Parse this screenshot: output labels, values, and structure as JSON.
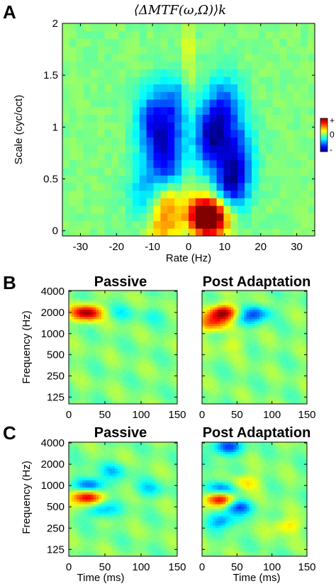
{
  "panel_letters": [
    "A",
    "B",
    "C"
  ],
  "colors": {
    "colormap": "jet",
    "axis": "#000000",
    "background": "#ffffff"
  },
  "chart_data": [
    {
      "panel": "A",
      "type": "heatmap",
      "title": "⟨ΔMTF(ω,Ω)⟩k",
      "xlabel": "Rate (Hz)",
      "ylabel": "Scale (cyc/oct)",
      "xlim": [
        -35,
        35
      ],
      "ylim": [
        -0.05,
        2
      ],
      "xticks": [
        -30,
        -20,
        -10,
        0,
        10,
        20,
        30
      ],
      "yticks": [
        0,
        0.5,
        1,
        1.5,
        2
      ],
      "ytick_labels": [
        "0",
        "0.5",
        "1",
        "1.5",
        "2"
      ],
      "grid": false,
      "colorbar": {
        "labels": [
          "+",
          "0",
          "-"
        ],
        "range": [
          -1,
          1
        ]
      },
      "value_range": [
        -1,
        1
      ],
      "features": [
        {
          "x": 4,
          "y": 0.18,
          "value": 1.0
        },
        {
          "x": 6,
          "y": 0.08,
          "value": 0.8
        },
        {
          "x": 10,
          "y": 0.18,
          "value": 0.45
        },
        {
          "x": -6,
          "y": 0.3,
          "value": 0.5
        },
        {
          "x": -7,
          "y": 0.05,
          "value": 0.5
        },
        {
          "x": 12,
          "y": 0.45,
          "value": -0.95
        },
        {
          "x": 6,
          "y": 0.9,
          "value": -0.9
        },
        {
          "x": 10,
          "y": 1.2,
          "value": -0.6
        },
        {
          "x": -6,
          "y": 0.7,
          "value": -0.75
        },
        {
          "x": -10,
          "y": 1.05,
          "value": -0.7
        },
        {
          "x": -4,
          "y": 1.2,
          "value": -0.55
        },
        {
          "x": -12,
          "y": 0.4,
          "value": -0.4
        },
        {
          "x": 14,
          "y": 0.8,
          "value": -0.5
        }
      ]
    },
    {
      "panel": "B-left",
      "type": "heatmap",
      "title": "Passive",
      "xlabel": "",
      "ylabel": "Frequency (Hz)",
      "xlim": [
        0,
        150
      ],
      "xticks": [
        0,
        50,
        100,
        150
      ],
      "yticks": [
        125,
        250,
        500,
        1000,
        2000,
        4000
      ],
      "ytick_labels": [
        "125",
        "250",
        "500",
        "1000",
        "2000",
        "4000"
      ],
      "features": [
        {
          "t": 25,
          "f": 2000,
          "value": 1.0
        },
        {
          "t": 70,
          "f": 2000,
          "value": -0.2
        },
        {
          "t": 120,
          "f": 1800,
          "value": -0.15
        }
      ]
    },
    {
      "panel": "B-right",
      "type": "heatmap",
      "title": "Post Adaptation",
      "xlabel": "",
      "ylabel": "",
      "xlim": [
        0,
        150
      ],
      "xticks": [
        0,
        50,
        100,
        150
      ],
      "yticks": [
        125,
        250,
        500,
        1000,
        2000,
        4000
      ],
      "features": [
        {
          "t": 30,
          "f": 2000,
          "value": 1.0
        },
        {
          "t": 15,
          "f": 1400,
          "value": 0.6
        },
        {
          "t": 80,
          "f": 2000,
          "value": -0.5
        },
        {
          "t": 60,
          "f": 1600,
          "value": -0.3
        },
        {
          "t": 40,
          "f": 700,
          "value": 0.2
        }
      ]
    },
    {
      "panel": "C-left",
      "type": "heatmap",
      "title": "Passive",
      "xlabel": "Time (ms)",
      "ylabel": "Frequency (Hz)",
      "xlim": [
        0,
        150
      ],
      "xticks": [
        0,
        50,
        100,
        150
      ],
      "yticks": [
        125,
        250,
        500,
        1000,
        2000,
        4000
      ],
      "ytick_labels": [
        "125",
        "250",
        "500",
        "1000",
        "2000",
        "4000"
      ],
      "features": [
        {
          "t": 25,
          "f": 700,
          "value": 1.0
        },
        {
          "t": 30,
          "f": 1000,
          "value": -0.7
        },
        {
          "t": 45,
          "f": 450,
          "value": -0.45
        },
        {
          "t": 60,
          "f": 1600,
          "value": -0.3
        },
        {
          "t": 110,
          "f": 900,
          "value": -0.3
        }
      ]
    },
    {
      "panel": "C-right",
      "type": "heatmap",
      "title": "Post Adaptation",
      "xlabel": "Time (ms)",
      "ylabel": "",
      "xlim": [
        0,
        150
      ],
      "xticks": [
        0,
        50,
        100,
        150
      ],
      "yticks": [
        125,
        250,
        500,
        1000,
        2000,
        4000
      ],
      "features": [
        {
          "t": 25,
          "f": 650,
          "value": 1.0
        },
        {
          "t": 30,
          "f": 900,
          "value": -0.75
        },
        {
          "t": 50,
          "f": 500,
          "value": -0.6
        },
        {
          "t": 35,
          "f": 3500,
          "value": -0.7
        },
        {
          "t": 30,
          "f": 320,
          "value": -0.5
        },
        {
          "t": 60,
          "f": 1100,
          "value": 0.4
        },
        {
          "t": 120,
          "f": 270,
          "value": 0.35
        }
      ]
    }
  ]
}
